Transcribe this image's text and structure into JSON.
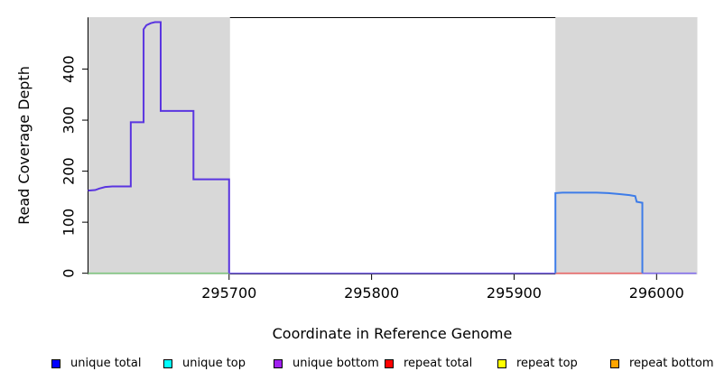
{
  "window": {
    "background": "#ffffff"
  },
  "chart_data": {
    "type": "line",
    "title": "",
    "xlabel": "Coordinate in Reference Genome",
    "ylabel": "Read Coverage Depth",
    "xlim": [
      295601,
      296028
    ],
    "ylim": [
      -1.5,
      500.9
    ],
    "x_ticks": [
      295700,
      295800,
      295900,
      296000
    ],
    "y_ticks": [
      0,
      100,
      200,
      300,
      400
    ],
    "grid": false,
    "legend_position": "bottom",
    "axis_color": "#000000",
    "shaded_regions": [
      {
        "name": "repeat-region-left",
        "x0": 295601,
        "x1": 295700,
        "color": "#d8d8d8"
      },
      {
        "name": "repeat-region-right",
        "x0": 295929,
        "x1": 296028,
        "color": "#d8d8d8"
      }
    ],
    "series": [
      {
        "name": "baseline-left-green",
        "color": "#82c882",
        "width": 1.6,
        "points": [
          [
            295601,
            0
          ],
          [
            295700,
            0
          ]
        ]
      },
      {
        "name": "baseline-right-red",
        "color": "#ed6b6b",
        "width": 1.6,
        "points": [
          [
            295929,
            0
          ],
          [
            295990,
            0
          ]
        ]
      },
      {
        "name": "baseline-mid-purple",
        "color": "#8570ee",
        "width": 1.6,
        "points": [
          [
            295700,
            0
          ],
          [
            295929,
            0
          ]
        ]
      },
      {
        "name": "baseline-end-purple",
        "color": "#8570ee",
        "width": 1.6,
        "points": [
          [
            295990,
            0
          ],
          [
            296028,
            0
          ]
        ]
      },
      {
        "name": "unique-coverage-left-block",
        "color": "#5a35e0",
        "width": 2,
        "points": [
          [
            295601,
            162
          ],
          [
            295606,
            163
          ],
          [
            295609,
            166
          ],
          [
            295613,
            169
          ],
          [
            295618,
            170
          ],
          [
            295631,
            170
          ],
          [
            295631,
            296
          ],
          [
            295640,
            296
          ],
          [
            295640,
            478
          ],
          [
            295642,
            486
          ],
          [
            295645,
            490
          ],
          [
            295648,
            492
          ],
          [
            295652,
            492
          ],
          [
            295652,
            318
          ],
          [
            295675,
            318
          ],
          [
            295675,
            184
          ],
          [
            295700,
            184
          ],
          [
            295700,
            0
          ]
        ]
      },
      {
        "name": "unique-coverage-right-block",
        "color": "#3d7ce8",
        "width": 2,
        "points": [
          [
            295929,
            0
          ],
          [
            295929,
            157
          ],
          [
            295934,
            158
          ],
          [
            295958,
            158
          ],
          [
            295966,
            157
          ],
          [
            295974,
            155
          ],
          [
            295981,
            153
          ],
          [
            295985,
            151
          ],
          [
            295986,
            140
          ],
          [
            295990,
            138
          ],
          [
            295990,
            0
          ]
        ]
      }
    ]
  },
  "legend": {
    "items": [
      {
        "label": "unique total",
        "color": "#0000ff"
      },
      {
        "label": "unique top",
        "color": "#00ffff"
      },
      {
        "label": "unique bottom",
        "color": "#a020f0"
      },
      {
        "label": "repeat total",
        "color": "#ff0000"
      },
      {
        "label": "repeat top",
        "color": "#ffff00"
      },
      {
        "label": "repeat bottom",
        "color": "#ffa500"
      }
    ]
  }
}
